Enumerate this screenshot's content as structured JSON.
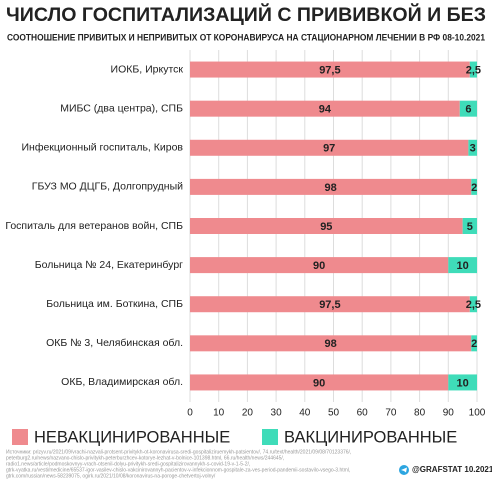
{
  "chart_data": {
    "type": "stacked-barh",
    "title": "ЧИСЛО ГОСПИТАЛИЗАЦИЙ С ПРИВИВКОЙ И БЕЗ",
    "subtitle": "СООТНОШЕНИЕ ПРИВИТЫХ И НЕПРИВИТЫХ ОТ КОРОНАВИРУСА НА СТАЦИОНАРНОМ ЛЕЧЕНИИ В РФ 08-10.2021",
    "categories": [
      "ИОКБ, Иркутск",
      "МИБС (два центра), СПБ",
      "Инфекционный госпиталь, Киров",
      "ГБУЗ МО ДЦГБ, Долгопрудный",
      "Госпиталь для ветеранов войн, СПБ",
      "Больница № 24, Екатеринбург",
      "Больница им. Боткина, СПБ",
      "ОКБ № 3, Челябинская обл.",
      "ОКБ, Владимирская обл."
    ],
    "series": [
      {
        "name": "НЕВАКЦИНИРОВАННЫЕ",
        "color": "#ef8a8e",
        "values": [
          97.5,
          94,
          97,
          98,
          95,
          90,
          97.5,
          98,
          90
        ],
        "value_labels": [
          "97,5",
          "94",
          "97",
          "98",
          "95",
          "90",
          "97,5",
          "98",
          "90"
        ]
      },
      {
        "name": "ВАКЦИНИРОВАННЫЕ",
        "color": "#3fdcb9",
        "values": [
          2.5,
          6,
          3,
          2,
          5,
          10,
          2.5,
          2,
          10
        ],
        "value_labels": [
          "2,5",
          "6",
          "3",
          "2",
          "5",
          "10",
          "2,5",
          "2",
          "10"
        ]
      }
    ],
    "xlim": [
      0,
      100
    ],
    "xticks": [
      0,
      10,
      20,
      30,
      40,
      50,
      60,
      70,
      80,
      90,
      100
    ],
    "grid": true,
    "sources": [
      "Источники: prizyv.ru/2021/09/vrachi-nazvali-protsent-privitykh-ot-koronavirusa-sredi-gospitaliziruemykh-patsientov/, 74.ru/text/health/2021/09/08/70123376/,",
      "peterburg2.ru/news/nazvano-chislo-privitykh-peterburzhcev-kotorye-lezhat-v-bolnice-101398.html, 66.ru/health/news/244645/,",
      "radio1.news/article/podmoskovnyy-vrach-otsenil-dolyu-privitykh-sredi-gospitalizirovannykh-s-covid-19-v-1-5-2/,",
      "gtrk-vyatka.ru/vesti/medicine/65537-igor-vasilev-chislo-vakcinirovannyh-pacientov-v-infekcionnom-gospitale-za-ves-period-pandemii-sostavilo-vsego-3.html,",
      "gtrk.com/russian/news-58239075, ogirk.ru/2021/10/08/koronavirus-na-poroge-chetvertoj-volny/"
    ],
    "credit": "@GRAFSTAT 10.2021"
  }
}
